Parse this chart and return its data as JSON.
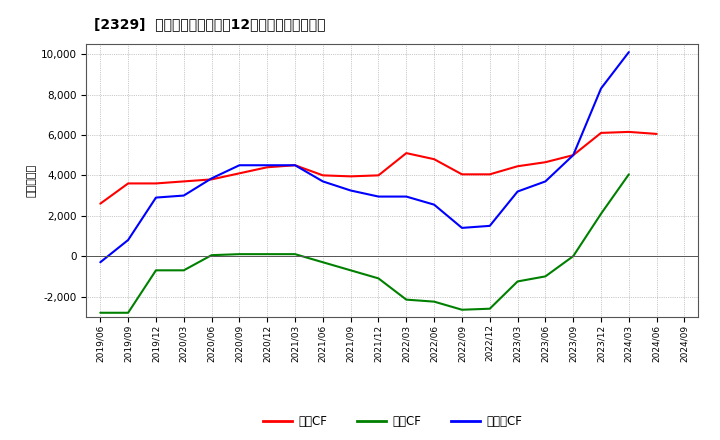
{
  "title": "[2329]  キャッシュフローの12か月移動合計の推移",
  "ylabel": "（百万円）",
  "background_color": "#ffffff",
  "grid_color": "#999999",
  "ylim": [
    -3000,
    10500
  ],
  "yticks": [
    -2000,
    0,
    2000,
    4000,
    6000,
    8000,
    10000
  ],
  "x_labels": [
    "2019/06",
    "2019/09",
    "2019/12",
    "2020/03",
    "2020/06",
    "2020/09",
    "2020/12",
    "2021/03",
    "2021/06",
    "2021/09",
    "2021/12",
    "2022/03",
    "2022/06",
    "2022/09",
    "2022/12",
    "2023/03",
    "2023/06",
    "2023/09",
    "2023/12",
    "2024/03",
    "2024/06",
    "2024/09"
  ],
  "series_order": [
    "営業CF",
    "投賄CF",
    "フリーCF"
  ],
  "series": {
    "営業CF": {
      "color": "#ff0000",
      "values": [
        2600,
        3600,
        3600,
        3700,
        3800,
        4100,
        4400,
        4500,
        4000,
        3950,
        4000,
        5100,
        4800,
        4050,
        4050,
        4450,
        4650,
        5000,
        6100,
        6150,
        6050,
        null
      ]
    },
    "投賄CF": {
      "color": "#008000",
      "values": [
        -2800,
        -2800,
        -700,
        -700,
        50,
        100,
        100,
        100,
        -300,
        -700,
        -1100,
        -2150,
        -2250,
        -2650,
        -2600,
        -1250,
        -1000,
        0,
        2100,
        4050,
        null,
        null
      ]
    },
    "フリーCF": {
      "color": "#0000ff",
      "values": [
        -300,
        800,
        2900,
        3000,
        3850,
        4500,
        4500,
        4500,
        3700,
        3250,
        2950,
        2950,
        2550,
        1400,
        1500,
        3200,
        3700,
        5000,
        8300,
        10100,
        null,
        null
      ]
    }
  },
  "legend_labels": [
    "営業CF",
    "投賄CF",
    "フリーCF"
  ],
  "legend_colors": [
    "#ff0000",
    "#008000",
    "#0000ff"
  ]
}
